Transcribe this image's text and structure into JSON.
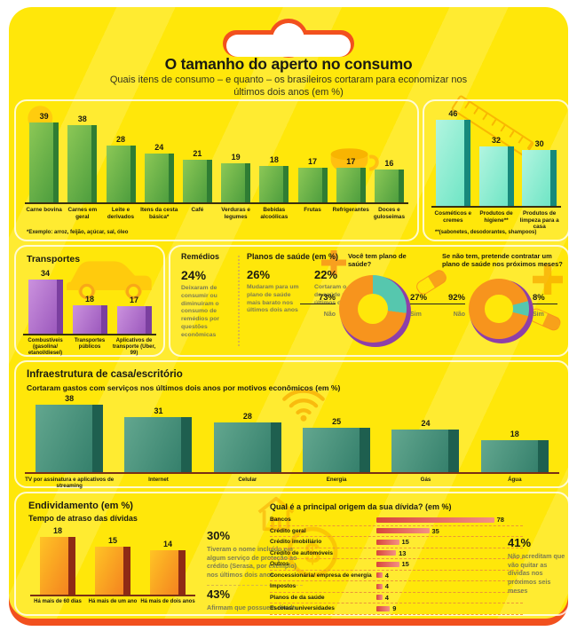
{
  "page": {
    "title": "O tamanho do aperto no consumo",
    "subtitle": "Quais itens de consumo – e quanto – os brasileiros cortaram para economizar nos últimos dois anos (em %)"
  },
  "colors": {
    "card_yellow": "#FFE70A",
    "card_orange": "#F2501E",
    "green_bar": "#5FAE45",
    "aqua_bar": "#7FEBD0",
    "purple_bar": "#A86CC8",
    "teal_bar": "#3F8B77",
    "orange_bar": "#F89F1B",
    "red_bar": "#E0483C",
    "donut_no": "#F7941D",
    "donut_yes": "#56C7AE",
    "donut_rim": "#8E3FA8"
  },
  "chart_data": [
    {
      "id": "food",
      "type": "bar",
      "categories": [
        "Carne bovina",
        "Carnes em geral",
        "Leite e derivados",
        "Itens da cesta básica*",
        "Café",
        "Verduras e legumes",
        "Bebidas alcoólicas",
        "Frutas",
        "Refrigerantes",
        "Doces e guloseimas"
      ],
      "values": [
        39,
        38,
        28,
        24,
        21,
        19,
        18,
        17,
        17,
        16
      ],
      "footnote": "*Exemplo: arroz, feijão, açúcar, sal, óleo",
      "colors": {
        "from": "#8CC856",
        "to": "#4E9E3E",
        "side": "#2F7D33"
      },
      "ylim": [
        0,
        45
      ],
      "grid": false
    },
    {
      "id": "hygiene",
      "type": "bar",
      "categories": [
        "Cosméticos e cremes",
        "Produtos de higiene**",
        "Produtos de limpeza para a casa"
      ],
      "values": [
        46,
        32,
        30
      ],
      "footnote": "**(sabonetes, desodorantes, shampoos)",
      "colors": {
        "from": "#B2F5E0",
        "to": "#6FE5C5",
        "side": "#17897B"
      },
      "ylim": [
        0,
        50
      ],
      "grid": false
    },
    {
      "id": "transport",
      "type": "bar",
      "title": "Transportes",
      "categories": [
        "Combustíveis (gasolina/ etanol/diesel)",
        "Transportes públicos",
        "Aplicativos de transporte (Uber, 99)"
      ],
      "values": [
        34,
        18,
        17
      ],
      "colors": {
        "from": "#CB92DE",
        "to": "#9C59BD",
        "side": "#7B3FA0"
      },
      "ylim": [
        0,
        40
      ],
      "grid": false
    },
    {
      "id": "plan_have",
      "type": "pie",
      "title": "Você tem plano de saúde?",
      "labels": [
        "Não",
        "Sim"
      ],
      "values": [
        73,
        27
      ],
      "colors": {
        "no": "#F7941D",
        "yes": "#56C7AE",
        "rim": "#8E3FA8"
      },
      "start_deg": 0
    },
    {
      "id": "plan_hire",
      "type": "pie",
      "title": "Se não tem, pretende contratar um plano de saúde nos próximos meses?",
      "labels": [
        "Não",
        "Sim"
      ],
      "values": [
        92,
        8
      ],
      "colors": {
        "no": "#F7941D",
        "yes": "#56C7AE",
        "rim": "#8E3FA8"
      },
      "start_deg": 75
    },
    {
      "id": "infra",
      "type": "bar",
      "title": "Infraestrutura de casa/escritório",
      "subtitle": "Cortaram gastos com serviços nos últimos dois anos por motivos econômicos (em %)",
      "categories": [
        "TV por assinatura e aplicativos de streaming",
        "Internet",
        "Celular",
        "Energia",
        "Gás",
        "Água"
      ],
      "values": [
        38,
        31,
        28,
        25,
        24,
        18
      ],
      "colors": {
        "from": "#63A78F",
        "to": "#35806C",
        "side": "#1E5F4F"
      },
      "ylim": [
        0,
        42
      ],
      "grid": false
    },
    {
      "id": "debt_delay",
      "type": "bar",
      "categories": [
        "Há mais de 60 dias",
        "Há mais de um ano",
        "Há mais de dois anos"
      ],
      "values": [
        18,
        15,
        14
      ],
      "colors": {
        "from": "#FFC425",
        "to": "#F4831F",
        "side": "#8F2B15"
      },
      "ylim": [
        0,
        20
      ],
      "grid": false
    },
    {
      "id": "debt_origin",
      "type": "bar",
      "orientation": "horizontal",
      "title": "Qual é a principal origem da sua dívida? (em %)",
      "categories": [
        "Bancos",
        "Crédito geral",
        "Crédito imobiliário",
        "Crédito de automóveis",
        "Outros",
        "Concessionária/ empresa de energia",
        "Impostos",
        "Planos de da saúde",
        "Escolas/ universidades"
      ],
      "values": [
        78,
        35,
        15,
        13,
        15,
        4,
        4,
        4,
        9
      ],
      "colors": {
        "from": "#D8453A",
        "to": "#F49084"
      },
      "xlim": [
        0,
        80
      ],
      "grid": false
    }
  ],
  "health": {
    "remedios": {
      "title": "Remédios",
      "pct": "24%",
      "desc": "Deixaram de consumir ou diminuíram o consumo de remédios por questões econômicas"
    },
    "planos": {
      "title": "Planos de saúde (em %)",
      "items": [
        {
          "pct": "26%",
          "desc": "Mudaram para um plano de saúde mais barato nos últimos dois anos"
        },
        {
          "pct": "22%",
          "desc": "Cortaram o plano de saúde nos últimos dois anos"
        }
      ]
    },
    "donut1": {
      "no_pct": "73%",
      "no_label": "Não",
      "yes_pct": "27%",
      "yes_label": "Sim"
    },
    "donut2": {
      "no_pct": "92%",
      "no_label": "Não",
      "yes_pct": "8%",
      "yes_label": "Sim"
    }
  },
  "debt": {
    "title": "Endividamento (em %)",
    "subtitle": "Tempo de atraso das dívidas",
    "stat1_pct": "30%",
    "stat1_desc": "Tiveram o nome incluído em algum serviço de proteção ao crédito (Serasa, por exemplo) nos últimos dois anos",
    "stat2_pct": "43%",
    "stat2_desc": "Afirmam que possuem dívida",
    "stat3_pct": "41%",
    "stat3_desc": "Não acreditam que vão quitar as dívidas nos próximos seis meses"
  },
  "icons": [
    "lightbulb-icon",
    "cup-icon",
    "ruler-icon",
    "car-icon",
    "cross-icon",
    "pill-icon",
    "wifi-icon",
    "coin-icon",
    "house-icon"
  ]
}
